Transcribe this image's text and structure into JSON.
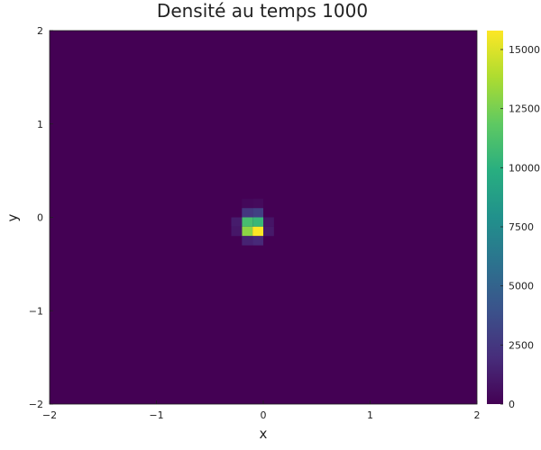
{
  "chart_data": {
    "type": "heatmap",
    "title": "Densité au temps 1000",
    "xlabel": "x",
    "ylabel": "y",
    "xlim": [
      -2,
      2
    ],
    "ylim": [
      -2,
      2
    ],
    "x_ticks": [
      -2,
      -1,
      0,
      1,
      2
    ],
    "y_ticks": [
      -2,
      -1,
      0,
      1,
      2
    ],
    "x_tick_labels": [
      "−2",
      "−1",
      "0",
      "1",
      "2"
    ],
    "y_tick_labels": [
      "−2",
      "−1",
      "0",
      "1",
      "2"
    ],
    "colorscale": "viridis",
    "zlim": [
      0,
      15800
    ],
    "colorbar_ticks": [
      0,
      2500,
      5000,
      7500,
      10000,
      12500,
      15000
    ],
    "colorbar_tick_labels": [
      "0",
      "2500",
      "5000",
      "7500",
      "10000",
      "12500",
      "15000"
    ],
    "grid_cell_size": 0.1,
    "background_value": 0,
    "cells": [
      {
        "x": -0.15,
        "y": 0.05,
        "v": 2500
      },
      {
        "x": -0.05,
        "y": 0.05,
        "v": 3000
      },
      {
        "x": -0.15,
        "y": -0.05,
        "v": 11000
      },
      {
        "x": -0.05,
        "y": -0.05,
        "v": 10500
      },
      {
        "x": -0.15,
        "y": -0.15,
        "v": 13000
      },
      {
        "x": -0.05,
        "y": -0.15,
        "v": 15800
      },
      {
        "x": -0.15,
        "y": -0.25,
        "v": 1500
      },
      {
        "x": -0.05,
        "y": -0.25,
        "v": 1800
      },
      {
        "x": -0.25,
        "y": -0.05,
        "v": 1200
      },
      {
        "x": -0.25,
        "y": -0.15,
        "v": 1000
      },
      {
        "x": 0.05,
        "y": -0.05,
        "v": 900
      },
      {
        "x": 0.05,
        "y": -0.15,
        "v": 1100
      },
      {
        "x": -0.05,
        "y": 0.15,
        "v": 400
      },
      {
        "x": -0.15,
        "y": 0.15,
        "v": 300
      }
    ],
    "grid": false,
    "legend": "colorbar-right"
  }
}
